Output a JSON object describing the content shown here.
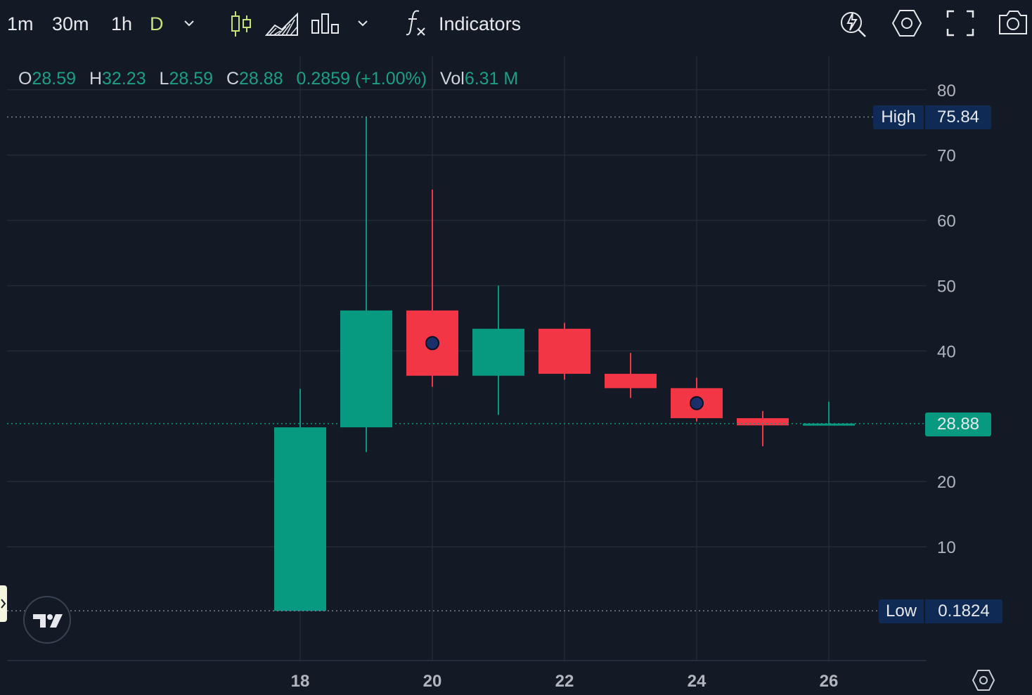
{
  "toolbar": {
    "intervals": [
      "1m",
      "30m",
      "1h",
      "D"
    ],
    "active_interval": "D",
    "indicators_label": "Indicators",
    "icons": [
      "chevron-down-icon",
      "candles-icon",
      "area-chart-icon",
      "bars-icon",
      "chevron-down-icon",
      "function-icon",
      "alert-icon",
      "settings-icon",
      "fullscreen-icon",
      "camera-icon"
    ]
  },
  "legend": {
    "o_label": "O",
    "o_value": "28.59",
    "h_label": "H",
    "h_value": "32.23",
    "l_label": "L",
    "l_value": "28.59",
    "c_label": "C",
    "c_value": "28.88",
    "change": "0.2859 (+1.00%)",
    "vol_label": "Vol",
    "vol_value": "6.31 M"
  },
  "badges": {
    "high_label": "High",
    "high_value": "75.84",
    "low_label": "Low",
    "low_value": "0.1824",
    "last_value": "28.88"
  },
  "colors": {
    "up": "#089981",
    "down": "#f23645",
    "background": "#131a26",
    "grid": "#232a36",
    "badge_bg": "#0f2a55"
  },
  "chart_data": {
    "type": "candlestick",
    "x_tick_labels": [
      "18",
      "20",
      "22",
      "24",
      "26"
    ],
    "y_tick_labels": [
      "10",
      "20",
      "40",
      "50",
      "60",
      "70",
      "80"
    ],
    "ylim": [
      0,
      85
    ],
    "high": 75.84,
    "low": 0.1824,
    "last": 28.88,
    "candles": [
      {
        "day": 18,
        "open": 0.18,
        "high": 34.2,
        "low": 0.18,
        "close": 28.3
      },
      {
        "day": 19,
        "open": 28.3,
        "high": 75.84,
        "low": 24.5,
        "close": 46.2
      },
      {
        "day": 20,
        "open": 46.2,
        "high": 64.7,
        "low": 34.5,
        "close": 36.2,
        "marker": true
      },
      {
        "day": 21,
        "open": 36.2,
        "high": 50.0,
        "low": 30.2,
        "close": 43.4
      },
      {
        "day": 22,
        "open": 43.4,
        "high": 44.3,
        "low": 35.6,
        "close": 36.5
      },
      {
        "day": 23,
        "open": 36.5,
        "high": 39.7,
        "low": 32.8,
        "close": 34.3
      },
      {
        "day": 24,
        "open": 34.3,
        "high": 35.9,
        "low": 29.2,
        "close": 29.7,
        "marker": true
      },
      {
        "day": 25,
        "open": 29.7,
        "high": 30.8,
        "low": 25.4,
        "close": 28.6
      },
      {
        "day": 26,
        "open": 28.59,
        "high": 32.23,
        "low": 28.59,
        "close": 28.88
      }
    ]
  }
}
